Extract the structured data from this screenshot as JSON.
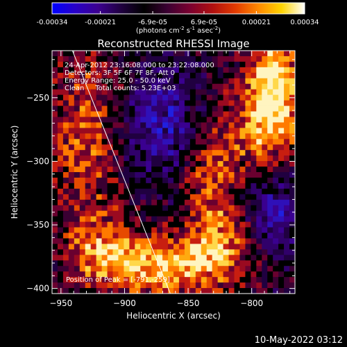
{
  "colorbar": {
    "ticks": [
      "-0.00034",
      "-0.00021",
      "-6.9e-05",
      "6.9e-05",
      "0.00021",
      "0.00034"
    ],
    "units_prefix": "(photons cm",
    "units_exp1": "-2",
    "units_mid1": " s",
    "units_exp2": "-1",
    "units_mid2": " asec",
    "units_exp3": "-2",
    "units_suffix": ")",
    "stops": [
      "#0000ff",
      "#2800c8",
      "#3c0090",
      "#200040",
      "#000000",
      "#3a0032",
      "#7a0030",
      "#b01010",
      "#e33b00",
      "#ff8a00",
      "#ffd400",
      "#ffffff"
    ]
  },
  "chart_data": {
    "type": "heatmap",
    "title": "Reconstructed RHESSI Image",
    "xlabel": "Heliocentric X (arcsec)",
    "ylabel": "Heliocentric Y (arcsec)",
    "x_ticks": [
      -950,
      -900,
      -850,
      -800
    ],
    "y_ticks": [
      -250,
      -300,
      -350,
      -400
    ],
    "x_tick_labels": [
      "−950",
      "−900",
      "−850",
      "−800"
    ],
    "y_tick_labels": [
      "−250",
      "−300",
      "−350",
      "−400"
    ],
    "xlim": [
      -957,
      -766
    ],
    "ylim": [
      -404,
      -213
    ],
    "value_range": [
      -0.00034,
      0.00034
    ],
    "limb_line": [
      [
        -941,
        -213
      ],
      [
        -864,
        -404
      ]
    ],
    "peak": [
      -791,
      -259
    ],
    "info_lines": [
      "24-Apr-2012 23:16:08.000 to 23:22:08.000",
      "Detectors: 3F 5F 6F 7F 8F, Att 0",
      "Energy Range: 25.0 - 50.0 keV",
      "Clean     Total counts: 5.23E+03"
    ],
    "peak_label": "Position of Peak = [-791,-259]",
    "grid": false,
    "legend": "none"
  },
  "timestamp": "10-May-2022 03:12"
}
